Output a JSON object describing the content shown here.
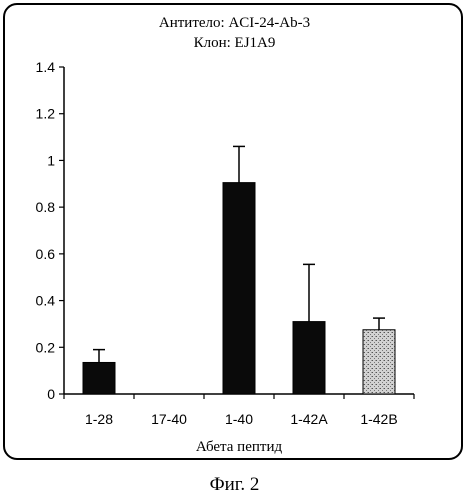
{
  "chart_data": {
    "type": "bar",
    "title": "Антитело: ACI-24-Ab-3",
    "subtitle": "Клон: EJ1A9",
    "categories": [
      "1-28",
      "17-40",
      "1-40",
      "1-42A",
      "1-42B"
    ],
    "values": [
      0.135,
      0,
      0.905,
      0.31,
      0.275
    ],
    "error_upper": [
      0.19,
      0,
      1.06,
      0.555,
      0.325
    ],
    "xlabel": "Абета пептид",
    "ylabel": "",
    "ylim": [
      0,
      1.4
    ],
    "yticks": [
      "0",
      "0.2",
      "0.4",
      "0.6",
      "0.8",
      "1",
      "1.2",
      "1.4"
    ],
    "bar_colors": [
      "#0a0a0a",
      "#0a0a0a",
      "#0a0a0a",
      "#0a0a0a",
      "#b8b8b8"
    ],
    "legend": "none",
    "grid": false
  },
  "figure_caption": "Фиг. 2"
}
